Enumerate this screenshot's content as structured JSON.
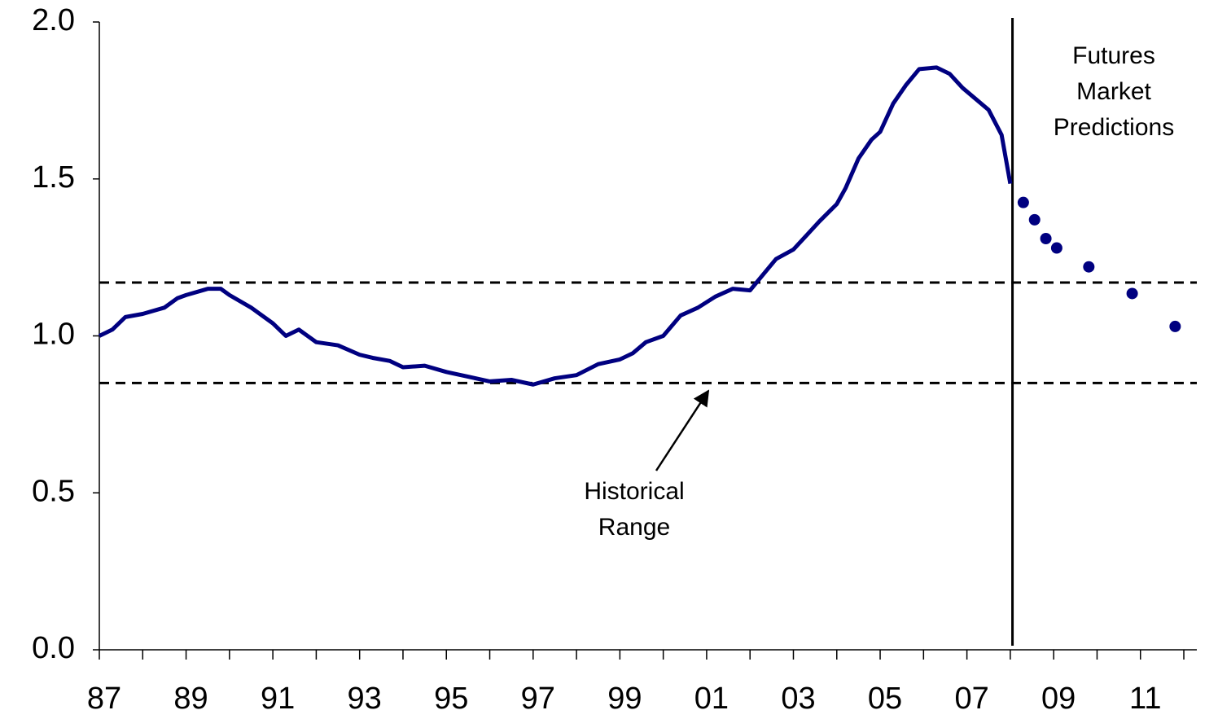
{
  "chart_data": {
    "type": "line",
    "xlim": [
      1987,
      2012.3
    ],
    "ylim": [
      0,
      2
    ],
    "yticks": [
      {
        "value": 0,
        "label": "0.0"
      },
      {
        "value": 0.5,
        "label": "0.5"
      },
      {
        "value": 1,
        "label": "1.0"
      },
      {
        "value": 1.5,
        "label": "1.5"
      },
      {
        "value": 2,
        "label": "2.0"
      }
    ],
    "xticks": [
      {
        "value": 1987,
        "label": "87"
      },
      {
        "value": 1989,
        "label": "89"
      },
      {
        "value": 1991,
        "label": "91"
      },
      {
        "value": 1993,
        "label": "93"
      },
      {
        "value": 1995,
        "label": "95"
      },
      {
        "value": 1997,
        "label": "97"
      },
      {
        "value": 1999,
        "label": "99"
      },
      {
        "value": 2001,
        "label": "01"
      },
      {
        "value": 2003,
        "label": "03"
      },
      {
        "value": 2005,
        "label": "05"
      },
      {
        "value": 2007,
        "label": "07"
      },
      {
        "value": 2009,
        "label": "09"
      },
      {
        "value": 2011,
        "label": "11"
      }
    ],
    "xminorticks": [
      1988,
      1990,
      1992,
      1994,
      1996,
      1998,
      2000,
      2002,
      2004,
      2006,
      2008,
      2010,
      2012
    ],
    "grid": false,
    "series": [
      {
        "style": "line",
        "color": "#000080",
        "x": [
          1987.0,
          1987.3,
          1987.6,
          1988.0,
          1988.5,
          1988.8,
          1989.0,
          1989.5,
          1989.8,
          1990.0,
          1990.5,
          1991.0,
          1991.3,
          1991.6,
          1992.0,
          1992.5,
          1993.0,
          1993.3,
          1993.7,
          1994.0,
          1994.5,
          1995.0,
          1995.5,
          1996.0,
          1996.5,
          1997.0,
          1997.5,
          1998.0,
          1998.5,
          1999.0,
          1999.3,
          1999.6,
          2000.0,
          2000.4,
          2000.8,
          2001.2,
          2001.6,
          2002.0,
          2002.3,
          2002.6,
          2003.0,
          2003.3,
          2003.6,
          2004.0,
          2004.2,
          2004.5,
          2004.8,
          2005.0,
          2005.3,
          2005.6,
          2005.9,
          2006.3,
          2006.6,
          2006.9,
          2007.2,
          2007.5,
          2007.8,
          2008.0
        ],
        "values": [
          1.0,
          1.02,
          1.06,
          1.07,
          1.09,
          1.12,
          1.13,
          1.15,
          1.15,
          1.13,
          1.09,
          1.04,
          1.0,
          1.02,
          0.98,
          0.97,
          0.94,
          0.93,
          0.92,
          0.9,
          0.905,
          0.885,
          0.87,
          0.855,
          0.86,
          0.845,
          0.865,
          0.875,
          0.91,
          0.925,
          0.945,
          0.98,
          1.0,
          1.065,
          1.09,
          1.125,
          1.15,
          1.145,
          1.195,
          1.245,
          1.275,
          1.32,
          1.365,
          1.42,
          1.47,
          1.565,
          1.625,
          1.65,
          1.74,
          1.8,
          1.85,
          1.855,
          1.835,
          1.79,
          1.755,
          1.72,
          1.64,
          1.485
        ]
      },
      {
        "style": "markers",
        "color": "#000080",
        "x": [
          2008.3,
          2008.56,
          2008.82,
          2009.07,
          2009.81,
          2010.81,
          2011.8
        ],
        "values": [
          1.425,
          1.37,
          1.31,
          1.28,
          1.22,
          1.135,
          1.03
        ]
      }
    ],
    "hlines": [
      1.17,
      0.85
    ],
    "vline": 2008.05,
    "annotations": [
      {
        "lines": [
          "Futures",
          "Market",
          "Predictions"
        ]
      },
      {
        "lines": [
          "Historical",
          "Range"
        ]
      }
    ]
  }
}
